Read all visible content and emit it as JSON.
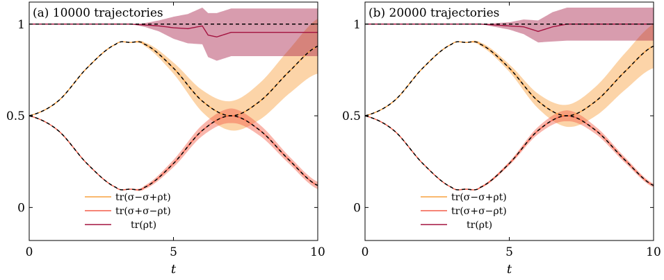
{
  "chart_data": [
    {
      "type": "line",
      "title": "(a) 10000 trajectories",
      "xlabel": "t",
      "ylabel": "",
      "xlim": [
        0,
        10
      ],
      "ylim": [
        -0.18,
        1.12
      ],
      "xticks": [
        "0",
        "5",
        "10"
      ],
      "yticks": [
        "0",
        "0.5",
        "1"
      ],
      "legend_position": "bottom-left",
      "legend": [
        "tr(σ−σ+ρt)",
        "tr(σ+σ−ρt)",
        "tr(ρt)"
      ],
      "series": [
        {
          "name": "tr(σ−σ+ρt)",
          "color": "#f9a03f",
          "x": [
            0,
            1,
            2,
            3,
            3.5,
            4,
            5,
            6,
            7,
            8,
            9,
            10
          ],
          "y": [
            0.5,
            0.58,
            0.76,
            0.89,
            0.9,
            0.89,
            0.76,
            0.58,
            0.5,
            0.58,
            0.74,
            0.88
          ],
          "band_halfwidth": [
            0,
            0,
            0,
            0,
            0,
            0.01,
            0.03,
            0.06,
            0.08,
            0.1,
            0.12,
            0.15
          ]
        },
        {
          "name": "tr(σ+σ−ρt)",
          "color": "#f45d48",
          "x": [
            0,
            1,
            2,
            3,
            3.5,
            4,
            5,
            6,
            7,
            8,
            9,
            10
          ],
          "y": [
            0.5,
            0.42,
            0.24,
            0.11,
            0.1,
            0.11,
            0.24,
            0.42,
            0.5,
            0.42,
            0.26,
            0.12
          ],
          "band_halfwidth": [
            0,
            0,
            0,
            0,
            0,
            0.01,
            0.02,
            0.03,
            0.04,
            0.03,
            0.02,
            0.02
          ]
        },
        {
          "name": "tr(ρt)",
          "color": "#a3123f",
          "x": [
            0,
            3.5,
            4,
            4.5,
            5,
            5.5,
            6,
            6.2,
            6.5,
            7,
            10
          ],
          "y": [
            1,
            1,
            0.995,
            0.99,
            0.98,
            0.975,
            0.99,
            0.94,
            0.93,
            0.955,
            0.955
          ],
          "band_halfwidth": [
            0,
            0,
            0.01,
            0.03,
            0.06,
            0.08,
            0.1,
            0.12,
            0.13,
            0.13,
            0.13
          ]
        }
      ]
    },
    {
      "type": "line",
      "title": "(b) 20000 trajectories",
      "xlabel": "t",
      "ylabel": "",
      "xlim": [
        0,
        10
      ],
      "ylim": [
        -0.18,
        1.12
      ],
      "xticks": [
        "0",
        "5",
        "10"
      ],
      "yticks": [
        "0",
        "0.5",
        "1"
      ],
      "legend_position": "bottom-left",
      "legend": [
        "tr(σ−σ+ρt)",
        "tr(σ+σ−ρt)",
        "tr(ρt)"
      ],
      "series": [
        {
          "name": "tr(σ−σ+ρt)",
          "color": "#f9a03f",
          "x": [
            0,
            1,
            2,
            3,
            3.5,
            4,
            5,
            6,
            7,
            8,
            9,
            10
          ],
          "y": [
            0.5,
            0.58,
            0.76,
            0.89,
            0.9,
            0.89,
            0.76,
            0.58,
            0.5,
            0.58,
            0.74,
            0.88
          ],
          "band_halfwidth": [
            0,
            0,
            0,
            0,
            0,
            0.01,
            0.02,
            0.04,
            0.06,
            0.08,
            0.1,
            0.12
          ]
        },
        {
          "name": "tr(σ+σ−ρt)",
          "color": "#f45d48",
          "x": [
            0,
            1,
            2,
            3,
            3.5,
            4,
            5,
            6,
            7,
            8,
            9,
            10
          ],
          "y": [
            0.5,
            0.42,
            0.24,
            0.11,
            0.1,
            0.11,
            0.24,
            0.42,
            0.5,
            0.42,
            0.26,
            0.12
          ],
          "band_halfwidth": [
            0,
            0,
            0,
            0,
            0,
            0.005,
            0.01,
            0.02,
            0.03,
            0.02,
            0.015,
            0.01
          ]
        },
        {
          "name": "tr(ρt)",
          "color": "#a3123f",
          "x": [
            0,
            4,
            4.5,
            5,
            5.5,
            6,
            6.5,
            7,
            10
          ],
          "y": [
            1,
            1,
            0.995,
            0.99,
            0.985,
            0.96,
            0.985,
            1,
            1
          ],
          "band_halfwidth": [
            0,
            0,
            0.01,
            0.02,
            0.04,
            0.06,
            0.08,
            0.09,
            0.09
          ]
        }
      ]
    }
  ]
}
